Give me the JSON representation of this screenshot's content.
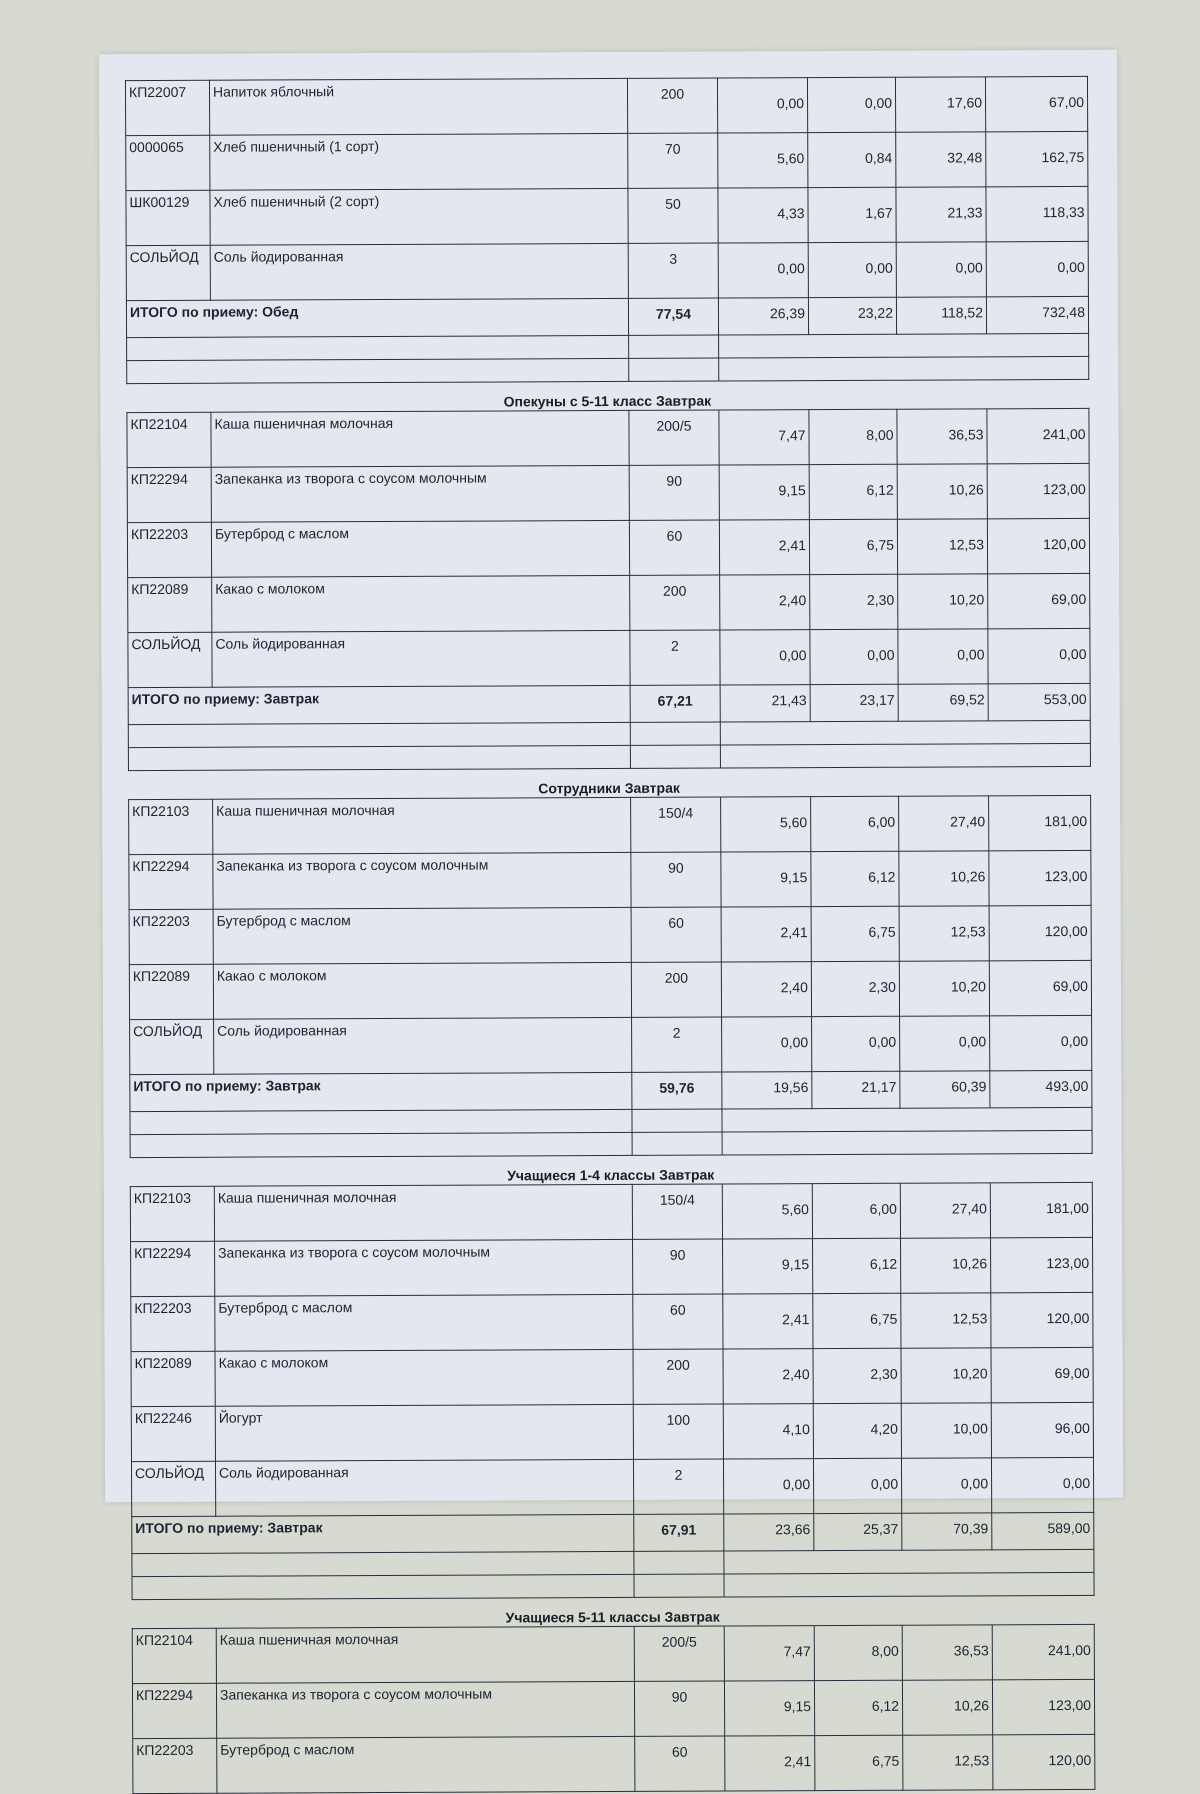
{
  "sections": [
    {
      "title": "",
      "rows": [
        {
          "code": "КП22007",
          "name": "Напиток яблочный",
          "weight": "200",
          "v1": "0,00",
          "v2": "0,00",
          "v3": "17,60",
          "v4": "67,00"
        },
        {
          "code": "0000065",
          "name": "Хлеб пшеничный (1 сорт)",
          "weight": "70",
          "v1": "5,60",
          "v2": "0,84",
          "v3": "32,48",
          "v4": "162,75"
        },
        {
          "code": "ШК00129",
          "name": "Хлеб пшеничный (2 сорт)",
          "weight": "50",
          "v1": "4,33",
          "v2": "1,67",
          "v3": "21,33",
          "v4": "118,33"
        },
        {
          "code": "СОЛЬЙОД",
          "name": "Соль йодированная",
          "weight": "3",
          "v1": "0,00",
          "v2": "0,00",
          "v3": "0,00",
          "v4": "0,00"
        }
      ],
      "total": {
        "label": "ИТОГО по приему: Обед",
        "weight": "77,54",
        "v1": "26,39",
        "v2": "23,22",
        "v3": "118,52",
        "v4": "732,48"
      }
    },
    {
      "title": "Опекуны с 5-11 класс Завтрак",
      "rows": [
        {
          "code": "КП22104",
          "name": "Каша пшеничная молочная",
          "weight": "200/5",
          "v1": "7,47",
          "v2": "8,00",
          "v3": "36,53",
          "v4": "241,00"
        },
        {
          "code": "КП22294",
          "name": "Запеканка из творога с соусом молочным",
          "weight": "90",
          "v1": "9,15",
          "v2": "6,12",
          "v3": "10,26",
          "v4": "123,00"
        },
        {
          "code": "КП22203",
          "name": "Бутерброд с маслом",
          "weight": "60",
          "v1": "2,41",
          "v2": "6,75",
          "v3": "12,53",
          "v4": "120,00"
        },
        {
          "code": "КП22089",
          "name": "Какао с молоком",
          "weight": "200",
          "v1": "2,40",
          "v2": "2,30",
          "v3": "10,20",
          "v4": "69,00"
        },
        {
          "code": "СОЛЬЙОД",
          "name": "Соль йодированная",
          "weight": "2",
          "v1": "0,00",
          "v2": "0,00",
          "v3": "0,00",
          "v4": "0,00"
        }
      ],
      "total": {
        "label": "ИТОГО по приему: Завтрак",
        "weight": "67,21",
        "v1": "21,43",
        "v2": "23,17",
        "v3": "69,52",
        "v4": "553,00"
      }
    },
    {
      "title": "Сотрудники Завтрак",
      "rows": [
        {
          "code": "КП22103",
          "name": "Каша пшеничная молочная",
          "weight": "150/4",
          "v1": "5,60",
          "v2": "6,00",
          "v3": "27,40",
          "v4": "181,00"
        },
        {
          "code": "КП22294",
          "name": "Запеканка из творога с соусом молочным",
          "weight": "90",
          "v1": "9,15",
          "v2": "6,12",
          "v3": "10,26",
          "v4": "123,00"
        },
        {
          "code": "КП22203",
          "name": "Бутерброд с маслом",
          "weight": "60",
          "v1": "2,41",
          "v2": "6,75",
          "v3": "12,53",
          "v4": "120,00"
        },
        {
          "code": "КП22089",
          "name": "Какао с молоком",
          "weight": "200",
          "v1": "2,40",
          "v2": "2,30",
          "v3": "10,20",
          "v4": "69,00"
        },
        {
          "code": "СОЛЬЙОД",
          "name": "Соль йодированная",
          "weight": "2",
          "v1": "0,00",
          "v2": "0,00",
          "v3": "0,00",
          "v4": "0,00"
        }
      ],
      "total": {
        "label": "ИТОГО по приему: Завтрак",
        "weight": "59,76",
        "v1": "19,56",
        "v2": "21,17",
        "v3": "60,39",
        "v4": "493,00"
      }
    },
    {
      "title": "Учащиеся 1-4 классы Завтрак",
      "rows": [
        {
          "code": "КП22103",
          "name": "Каша пшеничная молочная",
          "weight": "150/4",
          "v1": "5,60",
          "v2": "6,00",
          "v3": "27,40",
          "v4": "181,00"
        },
        {
          "code": "КП22294",
          "name": "Запеканка из творога с соусом молочным",
          "weight": "90",
          "v1": "9,15",
          "v2": "6,12",
          "v3": "10,26",
          "v4": "123,00"
        },
        {
          "code": "КП22203",
          "name": "Бутерброд с маслом",
          "weight": "60",
          "v1": "2,41",
          "v2": "6,75",
          "v3": "12,53",
          "v4": "120,00"
        },
        {
          "code": "КП22089",
          "name": "Какао с молоком",
          "weight": "200",
          "v1": "2,40",
          "v2": "2,30",
          "v3": "10,20",
          "v4": "69,00"
        },
        {
          "code": "КП22246",
          "name": "Йогурт",
          "weight": "100",
          "v1": "4,10",
          "v2": "4,20",
          "v3": "10,00",
          "v4": "96,00"
        },
        {
          "code": "СОЛЬЙОД",
          "name": "Соль йодированная",
          "weight": "2",
          "v1": "0,00",
          "v2": "0,00",
          "v3": "0,00",
          "v4": "0,00"
        }
      ],
      "total": {
        "label": "ИТОГО по приему: Завтрак",
        "weight": "67,91",
        "v1": "23,66",
        "v2": "25,37",
        "v3": "70,39",
        "v4": "589,00"
      }
    },
    {
      "title": "Учащиеся 5-11 классы Завтрак",
      "rows": [
        {
          "code": "КП22104",
          "name": "Каша пшеничная молочная",
          "weight": "200/5",
          "v1": "7,47",
          "v2": "8,00",
          "v3": "36,53",
          "v4": "241,00"
        },
        {
          "code": "КП22294",
          "name": "Запеканка из творога с соусом молочным",
          "weight": "90",
          "v1": "9,15",
          "v2": "6,12",
          "v3": "10,26",
          "v4": "123,00"
        },
        {
          "code": "КП22203",
          "name": "Бутерброд с маслом",
          "weight": "60",
          "v1": "2,41",
          "v2": "6,75",
          "v3": "12,53",
          "v4": "120,00"
        }
      ],
      "total": null
    }
  ]
}
